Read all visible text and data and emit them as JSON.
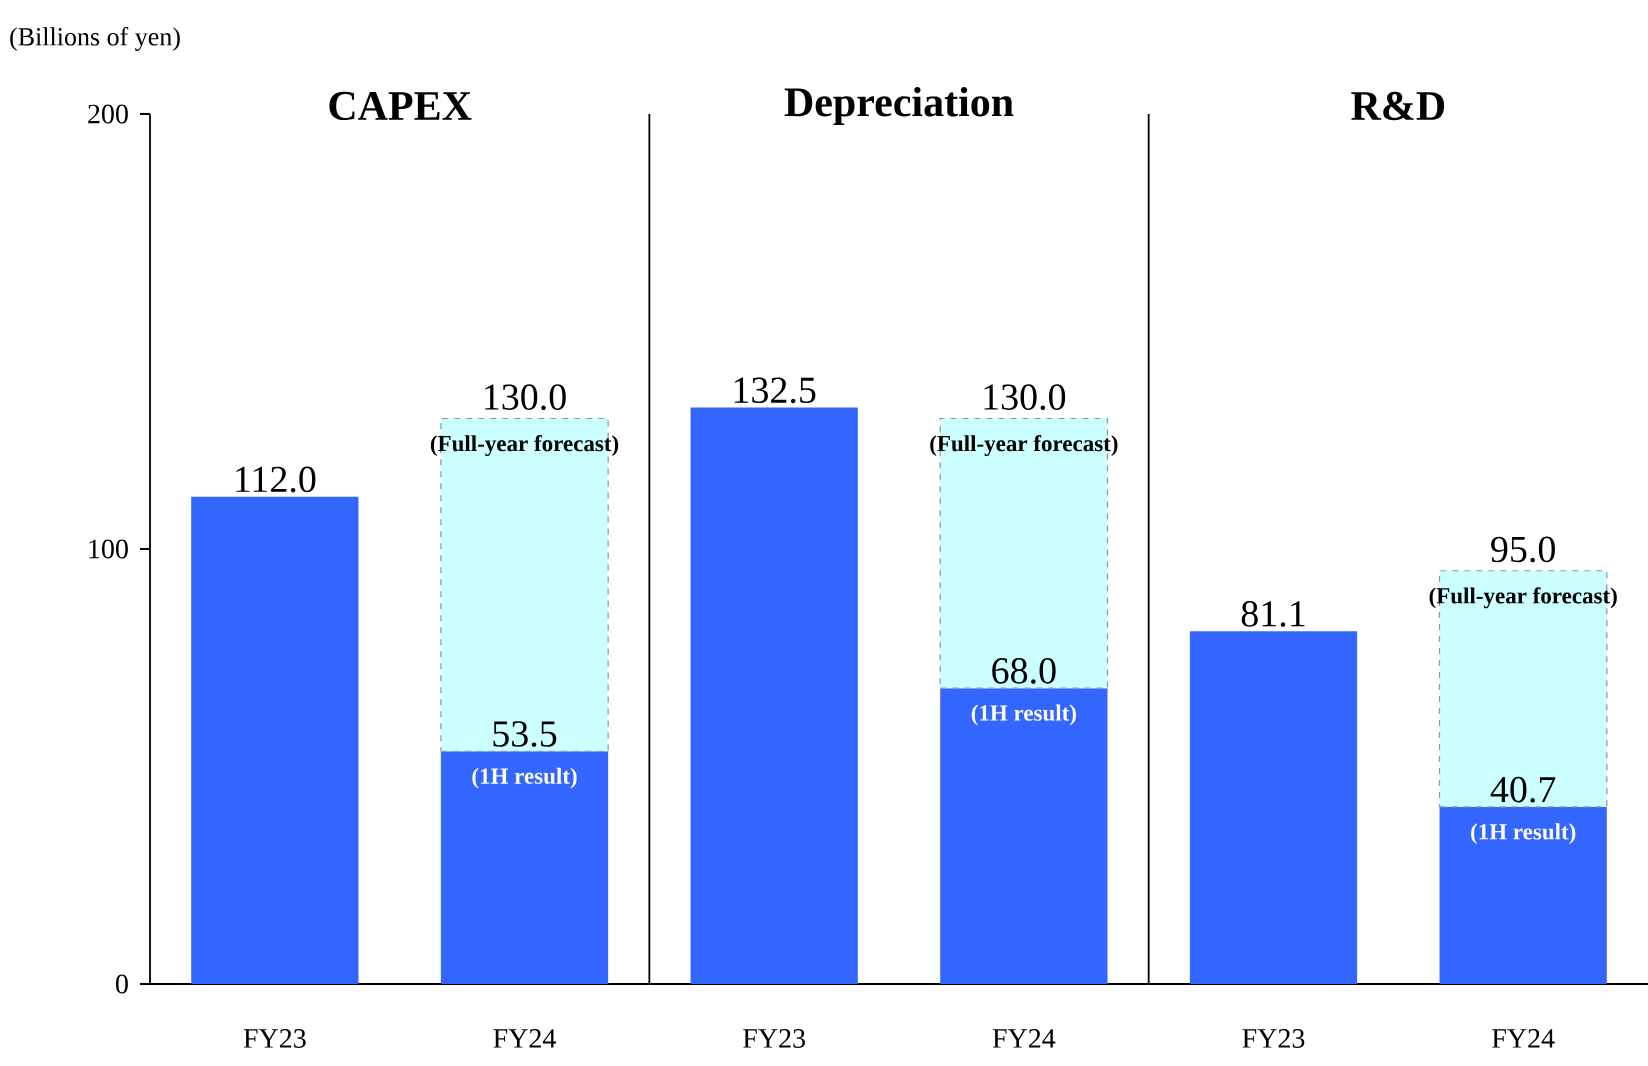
{
  "chart_data": [
    {
      "type": "bar",
      "title": "CAPEX",
      "ylabel": "(Billions of yen)",
      "categories": [
        "FY23",
        "FY24"
      ],
      "stacked": true,
      "ylim": [
        0,
        200
      ],
      "yticks": [
        0,
        100,
        200
      ],
      "series": [
        {
          "color": "#3366ff",
          "values": [
            112.0,
            53.5
          ],
          "value_labels": [
            "112.0",
            "53.5"
          ]
        },
        {
          "color": "#ccffff",
          "values": [
            null,
            76.5
          ],
          "line_style": "dashed"
        }
      ],
      "totals": [
        null,
        "130.0"
      ],
      "annotations": [
        {
          "text": "(1H result)",
          "x": "FY24",
          "y": 53.5
        },
        {
          "text": "(Full-year forecast)",
          "x": "FY24",
          "y": 130.0
        }
      ]
    },
    {
      "type": "bar",
      "title": "Depreciation",
      "categories": [
        "FY23",
        "FY24"
      ],
      "stacked": true,
      "ylim": [
        0,
        200
      ],
      "yticks": [
        0,
        100,
        200
      ],
      "tick_labels": "x",
      "series": [
        {
          "color": "#3366ff",
          "values": [
            132.5,
            68.0
          ],
          "value_labels": [
            "132.5",
            "68.0"
          ]
        },
        {
          "color": "#ccffff",
          "values": [
            null,
            62.0
          ],
          "line_style": "dashed"
        }
      ],
      "totals": [
        null,
        "130.0"
      ],
      "annotations": [
        {
          "text": "(1H result)",
          "x": "FY24",
          "y": 68.0
        },
        {
          "text": "(Full-year forecast)",
          "x": "FY24",
          "y": 130.0
        }
      ]
    },
    {
      "type": "bar",
      "title": "R&D",
      "categories": [
        "FY23",
        "FY24"
      ],
      "stacked": true,
      "ylim": [
        0,
        200
      ],
      "yticks": [
        0,
        100,
        200
      ],
      "tick_labels": "x",
      "series": [
        {
          "color": "#3366ff",
          "values": [
            81.1,
            40.7
          ],
          "value_labels": [
            "81.1",
            "40.7"
          ]
        },
        {
          "color": "#ccffff",
          "values": [
            null,
            54.3
          ],
          "line_style": "dashed"
        }
      ],
      "totals": [
        null,
        "95.0"
      ],
      "annotations": [
        {
          "text": "(1H result)",
          "x": "FY24",
          "y": 40.7
        },
        {
          "text": "(Full-year forecast)",
          "x": "FY24",
          "y": 95.0
        }
      ]
    }
  ]
}
